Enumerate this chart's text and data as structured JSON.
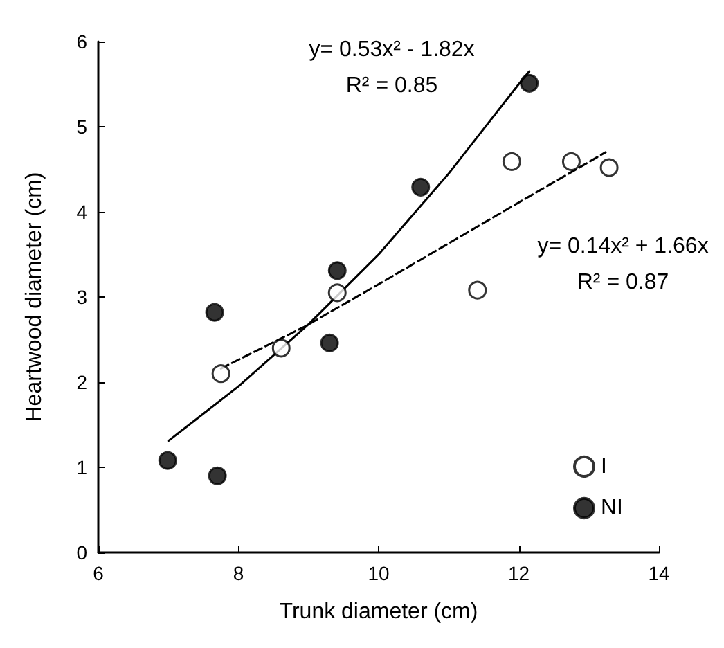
{
  "chart_data": {
    "type": "scatter",
    "xlabel": "Trunk diameter (cm)",
    "ylabel": "Heartwood diameter (cm)",
    "xlim": [
      6,
      14
    ],
    "xticks": [
      6,
      8,
      10,
      12,
      14
    ],
    "ylim": [
      0,
      6
    ],
    "yticks": [
      0,
      1,
      2,
      3,
      4,
      5,
      6
    ],
    "grid": false,
    "legend": "bottom right",
    "marker": "circle",
    "series": [
      {
        "name": "I",
        "color": "#ffffff",
        "x": [
          7.75,
          8.61,
          9.41,
          11.41,
          11.9,
          12.75,
          13.29
        ],
        "values": [
          2.1,
          2.4,
          3.05,
          3.08,
          4.59,
          4.59,
          4.52
        ]
      },
      {
        "name": "NI",
        "color": "#000000",
        "x": [
          6.99,
          7.7,
          7.66,
          9.3,
          9.41,
          10.6,
          12.15
        ],
        "values": [
          1.08,
          0.9,
          2.82,
          2.46,
          3.31,
          4.29,
          5.51
        ]
      },
      {
        "type": "line",
        "color": "#000000",
        "line_style": "dashed",
        "marker": "none",
        "x": [
          7.75,
          8.94,
          10,
          11,
          12,
          13.24
        ],
        "values": [
          2.16,
          2.65,
          3.15,
          3.63,
          4.11,
          4.7
        ]
      },
      {
        "type": "line",
        "color": "#000000",
        "line_style": "solid",
        "marker": "none",
        "x": [
          7,
          8,
          9,
          10,
          11,
          12,
          12.15
        ],
        "values": [
          1.31,
          1.95,
          2.68,
          3.5,
          4.45,
          5.5,
          5.65
        ]
      }
    ],
    "annotations": [
      "y= 0.53x² - 1.82x",
      "R² = 0.85",
      "y= 0.14x² + 1.66x",
      "R² = 0.87"
    ]
  }
}
